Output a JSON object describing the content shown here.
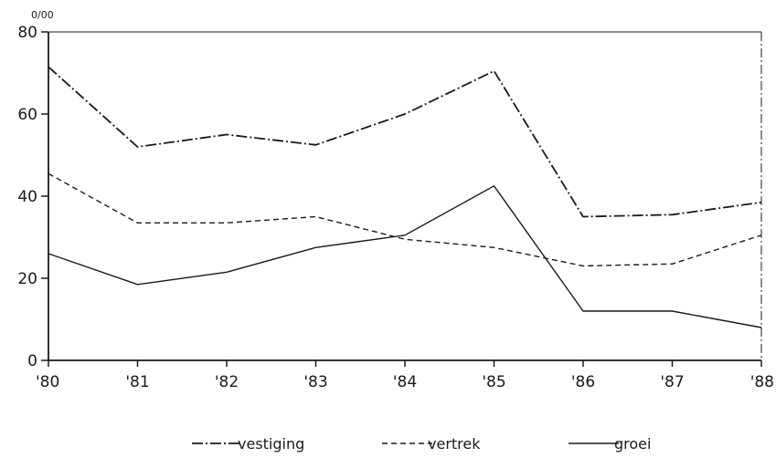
{
  "chart_data": {
    "type": "line",
    "unit_label": "0/00",
    "categories": [
      "'80",
      "'81",
      "'82",
      "'83",
      "'84",
      "'85",
      "'86",
      "'87",
      "'88"
    ],
    "ylim": [
      0,
      80
    ],
    "yticks": [
      0,
      20,
      40,
      60,
      80
    ],
    "grid": false,
    "legend_position": "bottom",
    "series": [
      {
        "name": "vestiging",
        "style": "dash-dot",
        "color": "#1a1a1a",
        "values": [
          71.5,
          52,
          55,
          52.5,
          60,
          70.5,
          35,
          35.5,
          38.5
        ]
      },
      {
        "name": "vertrek",
        "style": "dashed",
        "color": "#1a1a1a",
        "values": [
          45.5,
          33.5,
          33.5,
          35,
          29.5,
          27.5,
          23,
          23.5,
          30.5
        ]
      },
      {
        "name": "groei",
        "style": "solid",
        "color": "#1a1a1a",
        "values": [
          26,
          18.5,
          21.5,
          27.5,
          30.5,
          42.5,
          12,
          12,
          8
        ]
      }
    ]
  }
}
